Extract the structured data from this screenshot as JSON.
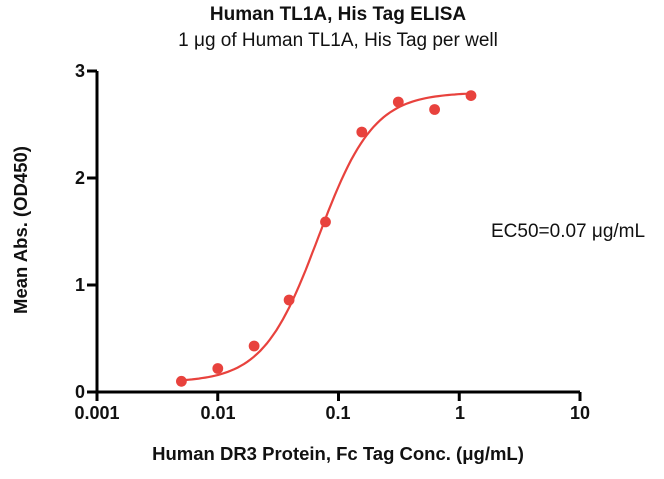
{
  "chart_data": {
    "type": "scatter",
    "title": "Human TL1A, His Tag ELISA",
    "subtitle": "1 μg of Human TL1A, His Tag per well",
    "xlabel": "Human DR3 Protein, Fc Tag Conc. (μg/mL)",
    "ylabel": "Mean Abs. (OD450)",
    "annotation": "EC50=0.07 μg/mL",
    "xscale": "log",
    "xlim": [
      0.001,
      10
    ],
    "ylim": [
      0,
      3
    ],
    "xticks": [
      0.001,
      0.01,
      0.1,
      1,
      10
    ],
    "xtick_labels": [
      "0.001",
      "0.01",
      "0.1",
      "1",
      "10"
    ],
    "yticks": [
      0,
      1,
      2,
      3
    ],
    "ytick_labels": [
      "0",
      "1",
      "2",
      "3"
    ],
    "grid": false,
    "legend": false,
    "axis_color": "#000000",
    "series": [
      {
        "name": "Human DR3 Protein, Fc Tag",
        "x": [
          0.005,
          0.01,
          0.02,
          0.039,
          0.078,
          0.156,
          0.313,
          0.625,
          1.25
        ],
        "y": [
          0.1,
          0.22,
          0.43,
          0.86,
          1.59,
          2.43,
          2.71,
          2.64,
          2.77
        ],
        "marker_color": "#e8423d",
        "line_color": "#e8423d"
      }
    ],
    "fit": {
      "model": "4PL",
      "bottom": 0.09,
      "top": 2.8,
      "ec50": 0.068,
      "hill": 1.9
    }
  }
}
